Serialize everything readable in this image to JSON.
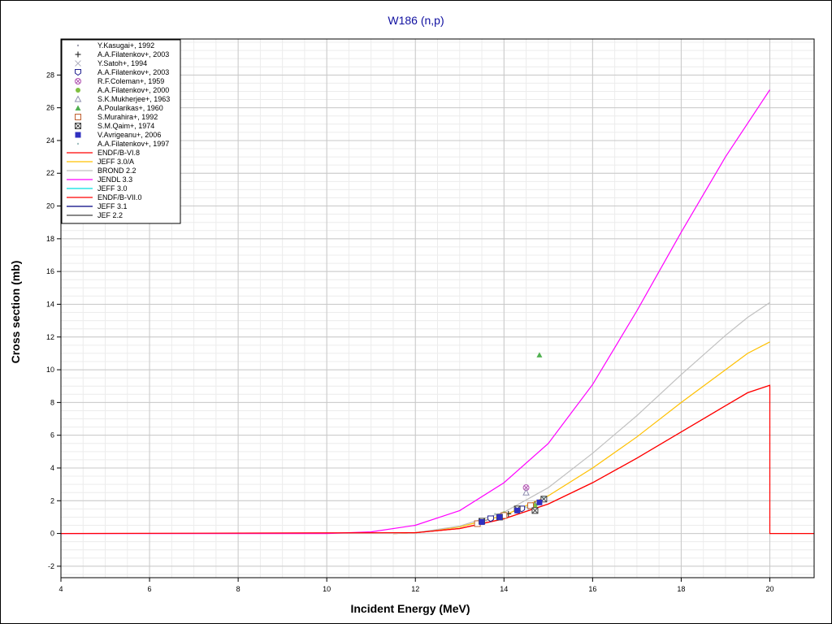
{
  "chart_data": {
    "type": "scatter",
    "title": "W186 (n,p)",
    "xlabel": "Incident Energy (MeV)",
    "ylabel": "Cross section (mb)",
    "xlim": [
      4,
      21
    ],
    "ylim": [
      -2.7,
      30.2
    ],
    "x_ticks": [
      4,
      6,
      8,
      10,
      12,
      14,
      16,
      18,
      20
    ],
    "y_ticks": [
      -2,
      0,
      2,
      4,
      6,
      8,
      10,
      12,
      14,
      16,
      18,
      20,
      22,
      24,
      26,
      28
    ],
    "grid": true,
    "legend_position": "top-left",
    "experimental": [
      {
        "name": "Y.Kasugai+, 1992",
        "marker": "dot",
        "color": "#a0a0b0",
        "points": [
          [
            13.6,
            0.8
          ],
          [
            14.3,
            1.3
          ],
          [
            14.8,
            1.9
          ]
        ]
      },
      {
        "name": "A.A.Filatenkov+, 2003",
        "marker": "plus",
        "color": "#303030",
        "points": [
          [
            13.5,
            0.7
          ],
          [
            14.1,
            1.2
          ],
          [
            14.7,
            1.8
          ]
        ]
      },
      {
        "name": "Y.Satoh+, 1994",
        "marker": "x",
        "color": "#b0b0c0",
        "points": [
          [
            13.9,
            1.0
          ],
          [
            14.6,
            1.6
          ]
        ]
      },
      {
        "name": "A.A.Filatenkov+, 2003",
        "marker": "shield",
        "color": "#202090",
        "points": [
          [
            13.7,
            0.9
          ],
          [
            14.4,
            1.5
          ]
        ]
      },
      {
        "name": "R.F.Coleman+, 1959",
        "marker": "circle-x",
        "color": "#b050b0",
        "points": [
          [
            14.5,
            2.8
          ]
        ]
      },
      {
        "name": "A.A.Filatenkov+, 2000",
        "marker": "filled-circle",
        "color": "#80c040",
        "points": [
          [
            14.0,
            1.2
          ],
          [
            14.7,
            1.7
          ]
        ]
      },
      {
        "name": "S.K.Mukherjee+, 1963",
        "marker": "triangle-open",
        "color": "#9090b0",
        "points": [
          [
            14.5,
            2.5
          ]
        ]
      },
      {
        "name": "A.Poularikas+, 1960",
        "marker": "triangle-filled",
        "color": "#50b050",
        "points": [
          [
            14.8,
            10.9
          ]
        ]
      },
      {
        "name": "S.Murahira+, 1992",
        "marker": "square-open",
        "color": "#c06030",
        "points": [
          [
            13.4,
            0.6
          ],
          [
            14.0,
            1.1
          ],
          [
            14.6,
            1.7
          ]
        ]
      },
      {
        "name": "S.M.Qaim+, 1974",
        "marker": "square-x",
        "color": "#404040",
        "points": [
          [
            13.5,
            0.75
          ],
          [
            13.9,
            1.0
          ],
          [
            14.3,
            1.5
          ],
          [
            14.7,
            1.4
          ],
          [
            14.9,
            2.1
          ]
        ]
      },
      {
        "name": "V.Avrigeanu+, 2006",
        "marker": "square-filled",
        "color": "#3030c0",
        "points": [
          [
            13.5,
            0.7
          ],
          [
            13.9,
            1.0
          ],
          [
            14.3,
            1.4
          ],
          [
            14.8,
            1.9
          ]
        ]
      },
      {
        "name": "A.A.Filatenkov+, 1997",
        "marker": "dot",
        "color": "#a0c0c0",
        "points": [
          [
            13.8,
            1.2
          ],
          [
            14.5,
            1.6
          ],
          [
            14.9,
            2.2
          ]
        ]
      }
    ],
    "evaluated": [
      {
        "name": "ENDF/B-VI.8",
        "color": "#ff0000",
        "x": [
          11.5,
          12,
          13,
          14,
          15,
          16,
          17,
          18,
          19,
          19.5,
          20,
          20,
          21
        ],
        "y": [
          0,
          0.05,
          0.3,
          0.9,
          1.8,
          3.1,
          4.6,
          6.2,
          7.8,
          8.6,
          9.05,
          0,
          0
        ]
      },
      {
        "name": "JEFF 3.0/A",
        "color": "#ffc000",
        "x": [
          11.5,
          12,
          13,
          14,
          15,
          16,
          17,
          18,
          19,
          19.5,
          20
        ],
        "y": [
          0,
          0.05,
          0.4,
          1.1,
          2.3,
          4.0,
          5.9,
          8.0,
          10.0,
          11.0,
          11.7
        ]
      },
      {
        "name": "BROND 2.2",
        "color": "#c0c0c0",
        "x": [
          11.5,
          12,
          13,
          14,
          15,
          16,
          17,
          18,
          19,
          19.5,
          20
        ],
        "y": [
          0,
          0.05,
          0.45,
          1.3,
          2.8,
          4.9,
          7.2,
          9.7,
          12.1,
          13.2,
          14.1
        ]
      },
      {
        "name": "JENDL 3.3",
        "color": "#ff00ff",
        "x": [
          4,
          10,
          11,
          12,
          13,
          14,
          15,
          16,
          17,
          18,
          19,
          20
        ],
        "y": [
          0,
          0,
          0.1,
          0.5,
          1.4,
          3.1,
          5.5,
          9.1,
          13.6,
          18.4,
          23.0,
          27.1
        ]
      },
      {
        "name": "JEFF 3.0",
        "color": "#00e0e0",
        "x": [],
        "y": []
      },
      {
        "name": "ENDF/B-VII.0",
        "color": "#ff0000",
        "x": [
          4,
          12,
          13,
          14,
          15,
          16,
          17,
          18,
          19,
          19.5,
          20
        ],
        "y": [
          0,
          0.05,
          0.3,
          0.9,
          1.8,
          3.1,
          4.6,
          6.2,
          7.8,
          8.6,
          9.05
        ]
      },
      {
        "name": "JEFF 3.1",
        "color": "#000080",
        "x": [],
        "y": []
      },
      {
        "name": "JEF 2.2",
        "color": "#404040",
        "x": [],
        "y": []
      }
    ]
  }
}
